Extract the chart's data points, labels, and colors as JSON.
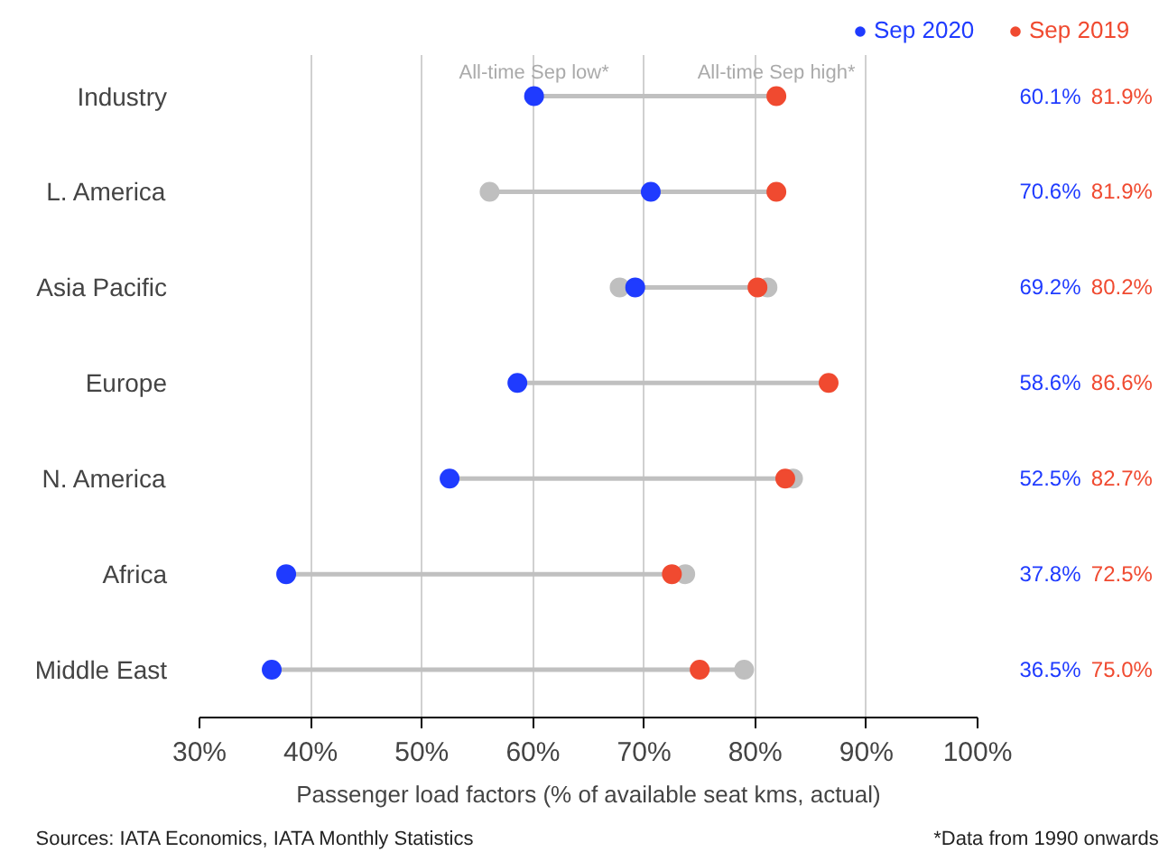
{
  "chart_data": {
    "type": "scatter",
    "orientation": "horizontal",
    "categories": [
      "Industry",
      "L. America",
      "Asia Pacific",
      "Europe",
      "N. America",
      "Africa",
      "Middle East"
    ],
    "xlabel": "Passenger load factors (% of available seat kms, actual)",
    "xlim": [
      30,
      100
    ],
    "xticks": [
      {
        "value": 30,
        "label": "30%"
      },
      {
        "value": 40,
        "label": "40%"
      },
      {
        "value": 50,
        "label": "50%"
      },
      {
        "value": 60,
        "label": "60%"
      },
      {
        "value": 70,
        "label": "70%"
      },
      {
        "value": 80,
        "label": "80%"
      },
      {
        "value": 90,
        "label": "90%"
      },
      {
        "value": 100,
        "label": "100%"
      }
    ],
    "grid": "x",
    "legend": "top right",
    "marker": "circle",
    "series": [
      {
        "color": "#bfbfbf",
        "values": [
          null,
          56.1,
          67.8,
          null,
          null,
          null,
          null
        ]
      },
      {
        "color": "#bfbfbf",
        "values": [
          null,
          null,
          81.1,
          null,
          83.4,
          73.7,
          79.0
        ]
      },
      {
        "name": "Sep 2020",
        "color": "#1f3bff",
        "values": [
          60.1,
          70.6,
          69.2,
          58.6,
          52.5,
          37.8,
          36.5
        ],
        "value_labels": [
          "60.1%",
          "70.6%",
          "69.2%",
          "58.6%",
          "52.5%",
          "37.8%",
          "36.5%"
        ]
      },
      {
        "name": "Sep 2019",
        "color": "#f04a30",
        "values": [
          81.9,
          81.9,
          80.2,
          86.6,
          82.7,
          72.5,
          75.0
        ],
        "value_labels": [
          "81.9%",
          "81.9%",
          "80.2%",
          "86.6%",
          "82.7%",
          "72.5%",
          "75.0%"
        ]
      }
    ],
    "annotations": [
      {
        "text": "All-time Sep low*",
        "x": 60.1,
        "y": "Industry"
      },
      {
        "text": "All-time Sep high*",
        "x": 81.9,
        "y": "Industry"
      },
      "Sources: IATA Economics, IATA Monthly Statistics",
      "*Data from 1990 onwards"
    ]
  }
}
